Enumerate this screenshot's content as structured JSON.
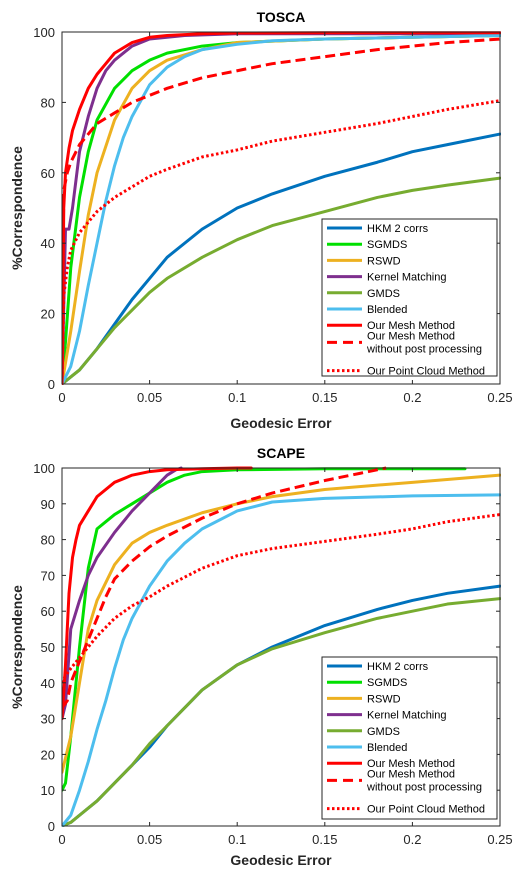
{
  "chart_data": [
    {
      "type": "line",
      "title": "TOSCA",
      "xlabel": "Geodesic Error",
      "ylabel": "%Correspondence",
      "xlim": [
        0,
        0.25
      ],
      "ylim": [
        0,
        100
      ],
      "xticks": [
        "0",
        "0.05",
        "0.1",
        "0.15",
        "0.2",
        "0.25"
      ],
      "yticks": [
        "0",
        "20",
        "40",
        "60",
        "80",
        "100"
      ],
      "grid": false,
      "legend_position": "bottom-right",
      "series": [
        {
          "name": "HKM 2 corrs",
          "color": "#0072BD",
          "style": "solid",
          "x": [
            0,
            0.005,
            0.01,
            0.02,
            0.03,
            0.04,
            0.05,
            0.06,
            0.08,
            0.1,
            0.12,
            0.15,
            0.18,
            0.2,
            0.22,
            0.25
          ],
          "y": [
            0,
            2,
            4,
            10,
            17,
            24,
            30,
            36,
            44,
            50,
            54,
            59,
            63,
            66,
            68,
            71
          ]
        },
        {
          "name": "SGMDS",
          "color": "#00E000",
          "style": "solid",
          "x": [
            0,
            0.002,
            0.005,
            0.01,
            0.015,
            0.02,
            0.03,
            0.04,
            0.05,
            0.06,
            0.08,
            0.1,
            0.15,
            0.2,
            0.25
          ],
          "y": [
            0,
            12,
            33,
            53,
            66,
            75,
            84,
            89,
            92,
            94,
            96,
            97,
            98,
            98.5,
            99
          ]
        },
        {
          "name": "RSWD",
          "color": "#EDB120",
          "style": "solid",
          "x": [
            0,
            0.005,
            0.01,
            0.015,
            0.02,
            0.03,
            0.04,
            0.05,
            0.06,
            0.08,
            0.1,
            0.15,
            0.2,
            0.25
          ],
          "y": [
            0,
            15,
            32,
            48,
            60,
            75,
            84,
            89,
            92,
            95,
            97,
            98,
            98.5,
            99
          ]
        },
        {
          "name": "Kernel Matching",
          "color": "#7E2F8E",
          "style": "solid",
          "x": [
            0,
            0.002,
            0.004,
            0.006,
            0.008,
            0.01,
            0.015,
            0.02,
            0.025,
            0.03,
            0.04,
            0.05,
            0.07,
            0.1,
            0.15,
            0.2,
            0.25
          ],
          "y": [
            0,
            44,
            44,
            50,
            58,
            66,
            76,
            84,
            89,
            92,
            96,
            98,
            99,
            99.5,
            99.5,
            99.5,
            99.5
          ]
        },
        {
          "name": "GMDS",
          "color": "#77AC30",
          "style": "solid",
          "x": [
            0,
            0.005,
            0.01,
            0.02,
            0.03,
            0.04,
            0.05,
            0.06,
            0.08,
            0.1,
            0.12,
            0.15,
            0.18,
            0.2,
            0.22,
            0.25
          ],
          "y": [
            0,
            2,
            4,
            10,
            16,
            21,
            26,
            30,
            36,
            41,
            45,
            49,
            53,
            55,
            56.5,
            58.5
          ]
        },
        {
          "name": "Blended",
          "color": "#4DBEEE",
          "style": "solid",
          "x": [
            0,
            0.005,
            0.01,
            0.015,
            0.02,
            0.025,
            0.03,
            0.035,
            0.04,
            0.05,
            0.06,
            0.07,
            0.08,
            0.1,
            0.12,
            0.15,
            0.2,
            0.25
          ],
          "y": [
            0,
            5,
            15,
            28,
            40,
            52,
            62,
            70,
            76,
            85,
            90,
            93,
            95,
            96.5,
            97.5,
            98,
            98.5,
            99
          ]
        },
        {
          "name": "Our Mesh Method",
          "color": "#FF0000",
          "style": "solid",
          "x": [
            0,
            0.001,
            0.002,
            0.004,
            0.006,
            0.008,
            0.01,
            0.015,
            0.02,
            0.025,
            0.03,
            0.04,
            0.05,
            0.06,
            0.08,
            0.1,
            0.15,
            0.2,
            0.25
          ],
          "y": [
            0,
            50,
            60,
            67,
            72,
            75,
            78,
            84,
            88,
            91,
            94,
            97,
            98.5,
            99,
            99.5,
            99.7,
            99.8,
            99.8,
            99.8
          ]
        },
        {
          "name": "Our Mesh Method\nwithout post processing",
          "color": "#FF0000",
          "style": "dashed",
          "x": [
            0,
            0.001,
            0.003,
            0.005,
            0.008,
            0.01,
            0.015,
            0.02,
            0.03,
            0.04,
            0.05,
            0.06,
            0.08,
            0.1,
            0.12,
            0.15,
            0.18,
            0.2,
            0.22,
            0.25
          ],
          "y": [
            0,
            55,
            60,
            63,
            66,
            68,
            71,
            74,
            77,
            80,
            82,
            84,
            87,
            89,
            91,
            93,
            95,
            96,
            97,
            98
          ]
        },
        {
          "name": "Our Point Cloud Method",
          "color": "#FF0000",
          "style": "dotted",
          "x": [
            0,
            0.001,
            0.003,
            0.005,
            0.01,
            0.015,
            0.02,
            0.03,
            0.04,
            0.05,
            0.06,
            0.08,
            0.1,
            0.12,
            0.15,
            0.18,
            0.2,
            0.22,
            0.25
          ],
          "y": [
            0,
            25,
            33,
            38,
            43,
            46,
            49,
            53,
            56,
            59,
            61,
            64.5,
            66.5,
            69,
            71.5,
            74,
            76,
            78,
            80.5
          ]
        }
      ]
    },
    {
      "type": "line",
      "title": "SCAPE",
      "xlabel": "Geodesic Error",
      "ylabel": "%Correspondence",
      "xlim": [
        0,
        0.25
      ],
      "ylim": [
        0,
        100
      ],
      "xticks": [
        "0",
        "0.05",
        "0.1",
        "0.15",
        "0.2",
        "0.25"
      ],
      "yticks": [
        "0",
        "10",
        "20",
        "30",
        "40",
        "50",
        "60",
        "70",
        "80",
        "90",
        "100"
      ],
      "grid": false,
      "legend_position": "bottom-right",
      "series": [
        {
          "name": "HKM 2 corrs",
          "color": "#0072BD",
          "style": "solid",
          "x": [
            0,
            0.005,
            0.01,
            0.02,
            0.03,
            0.04,
            0.05,
            0.06,
            0.08,
            0.1,
            0.12,
            0.15,
            0.18,
            0.2,
            0.22,
            0.25
          ],
          "y": [
            0,
            1,
            3,
            7,
            12,
            17,
            22,
            28,
            38,
            45,
            50,
            56,
            60.5,
            63,
            65,
            67
          ]
        },
        {
          "name": "SGMDS",
          "color": "#00E000",
          "style": "solid",
          "x": [
            0,
            0.002,
            0.005,
            0.01,
            0.015,
            0.02,
            0.025,
            0.03,
            0.04,
            0.05,
            0.06,
            0.07,
            0.08,
            0.1,
            0.15,
            0.2,
            0.23
          ],
          "y": [
            10,
            12,
            25,
            50,
            72,
            83,
            85,
            87,
            90,
            93,
            96,
            98,
            99,
            99.5,
            99.8,
            99.8,
            99.8
          ]
        },
        {
          "name": "RSWD",
          "color": "#EDB120",
          "style": "solid",
          "x": [
            0,
            0.005,
            0.01,
            0.015,
            0.02,
            0.03,
            0.04,
            0.05,
            0.06,
            0.08,
            0.1,
            0.12,
            0.15,
            0.2,
            0.25
          ],
          "y": [
            15,
            25,
            40,
            55,
            63,
            73,
            79,
            82,
            84,
            87.5,
            90,
            92,
            94,
            96,
            98
          ]
        },
        {
          "name": "Kernel Matching",
          "color": "#7E2F8E",
          "style": "solid",
          "x": [
            0,
            0.002,
            0.005,
            0.01,
            0.015,
            0.02,
            0.03,
            0.04,
            0.05,
            0.06,
            0.065,
            0.068
          ],
          "y": [
            30,
            34,
            55,
            63,
            70,
            75,
            82,
            88,
            93,
            98,
            99.5,
            100
          ]
        },
        {
          "name": "GMDS",
          "color": "#77AC30",
          "style": "solid",
          "x": [
            0,
            0.005,
            0.01,
            0.02,
            0.03,
            0.04,
            0.05,
            0.06,
            0.08,
            0.1,
            0.12,
            0.15,
            0.18,
            0.2,
            0.22,
            0.25
          ],
          "y": [
            0,
            1,
            3,
            7,
            12,
            17,
            23,
            28,
            38,
            45,
            49.5,
            54,
            58,
            60,
            62,
            63.5
          ]
        },
        {
          "name": "Blended",
          "color": "#4DBEEE",
          "style": "solid",
          "x": [
            0,
            0.005,
            0.01,
            0.015,
            0.02,
            0.025,
            0.03,
            0.035,
            0.04,
            0.05,
            0.06,
            0.07,
            0.08,
            0.1,
            0.12,
            0.15,
            0.2,
            0.25
          ],
          "y": [
            0,
            3,
            10,
            18,
            27,
            35,
            44,
            52,
            58,
            67,
            74,
            79,
            83,
            88,
            90.5,
            91.5,
            92.2,
            92.5
          ]
        },
        {
          "name": "Our Mesh Method",
          "color": "#FF0000",
          "style": "solid",
          "x": [
            0,
            0.002,
            0.004,
            0.006,
            0.008,
            0.01,
            0.015,
            0.02,
            0.03,
            0.04,
            0.05,
            0.06,
            0.08,
            0.1,
            0.108
          ],
          "y": [
            30,
            45,
            65,
            75,
            80,
            84,
            88,
            92,
            96,
            98,
            99,
            99.5,
            99.8,
            100,
            100
          ]
        },
        {
          "name": "Our Mesh Method\nwithout post processing",
          "color": "#FF0000",
          "style": "dashed",
          "x": [
            0,
            0.003,
            0.005,
            0.01,
            0.015,
            0.02,
            0.025,
            0.03,
            0.04,
            0.05,
            0.06,
            0.08,
            0.1,
            0.12,
            0.15,
            0.17,
            0.185
          ],
          "y": [
            33,
            35,
            40,
            46,
            52,
            58,
            64,
            69,
            74,
            78,
            81,
            86,
            90,
            93,
            96.5,
            98.5,
            100
          ]
        },
        {
          "name": "Our Point Cloud Method",
          "color": "#FF0000",
          "style": "dotted",
          "x": [
            0,
            0.002,
            0.005,
            0.01,
            0.02,
            0.03,
            0.04,
            0.05,
            0.06,
            0.08,
            0.1,
            0.12,
            0.15,
            0.18,
            0.2,
            0.22,
            0.25
          ],
          "y": [
            40,
            42,
            44,
            47,
            53,
            58,
            61.5,
            64,
            67,
            72,
            75.5,
            77.5,
            79.5,
            81.5,
            83,
            85,
            87
          ]
        }
      ]
    }
  ]
}
